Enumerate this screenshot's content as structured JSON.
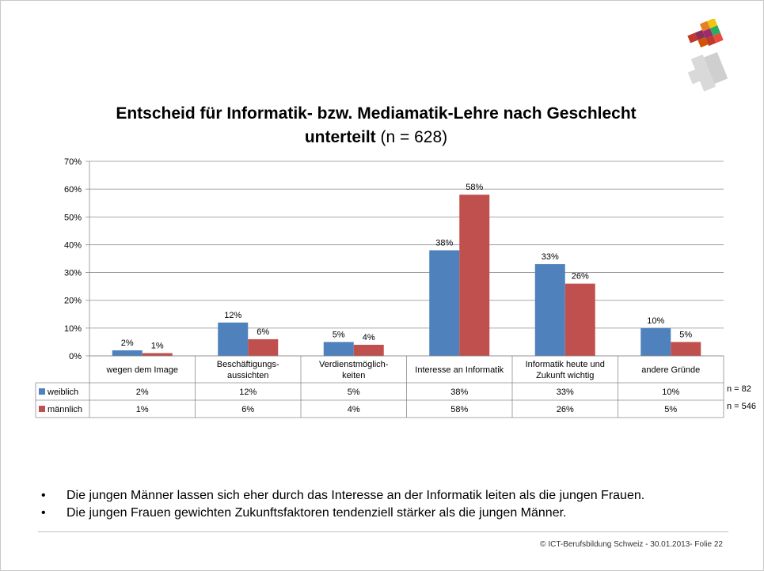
{
  "chart_data": {
    "type": "bar",
    "title_line1": "Entscheid für Informatik- bzw. Mediamatik-Lehre nach Geschlecht",
    "title_line2_bold": "unterteilt",
    "title_line2_rest": " (n = 628)",
    "categories": [
      [
        "wegen dem Image"
      ],
      [
        "Beschäftigungs-",
        "aussichten"
      ],
      [
        "Verdienstmöglich-",
        "keiten"
      ],
      [
        "Interesse an Informatik"
      ],
      [
        "Informatik heute und",
        "Zukunft wichtig"
      ],
      [
        "andere Gründe"
      ]
    ],
    "series": [
      {
        "name": "weiblich",
        "color": "#4f81bd",
        "values": [
          2,
          12,
          5,
          38,
          33,
          10
        ],
        "labels": [
          "2%",
          "12%",
          "5%",
          "38%",
          "33%",
          "10%"
        ],
        "n": "n = 82"
      },
      {
        "name": "männlich",
        "color": "#c0504d",
        "values": [
          1,
          6,
          4,
          58,
          26,
          5
        ],
        "labels": [
          "1%",
          "6%",
          "4%",
          "58%",
          "26%",
          "5%"
        ],
        "n": "n = 546"
      }
    ],
    "ylim": [
      0,
      70
    ],
    "yticks": [
      "0%",
      "10%",
      "20%",
      "30%",
      "40%",
      "50%",
      "60%",
      "70%"
    ],
    "grid": true,
    "data_table": true
  },
  "bullets": [
    "Die jungen Männer lassen sich eher durch das Interesse an der Informatik leiten als die jungen Frauen.",
    "Die jungen Frauen gewichten Zukunftsfaktoren tendenziell stärker als die jungen Männer."
  ],
  "footer": "© ICT-Berufsbildung Schweiz - 30.01.2013- Folie 22"
}
